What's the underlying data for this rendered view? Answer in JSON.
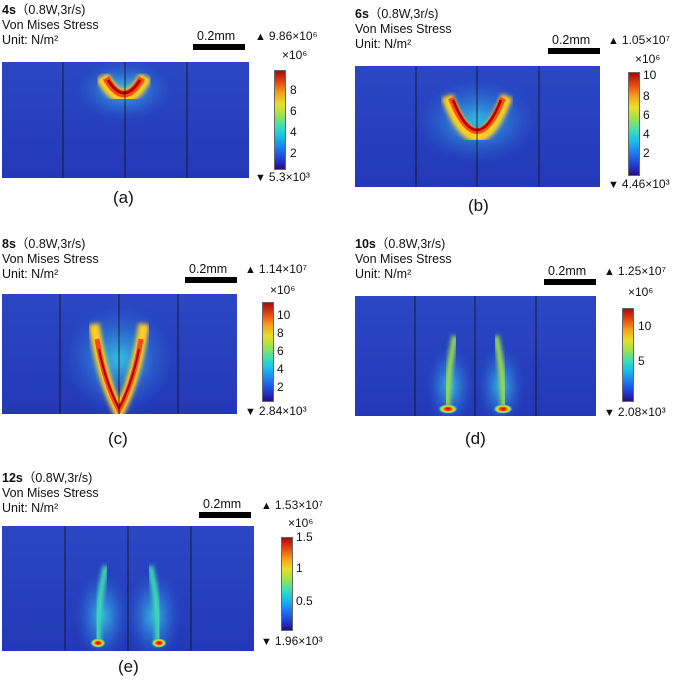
{
  "common": {
    "quantity": "Von Mises Stress",
    "unit": "Unit:  N/m²",
    "scalebar": "0.2mm",
    "multiplier": "×10⁶"
  },
  "panels": [
    {
      "time": "4s",
      "params": "（0.8W,3r/s)",
      "max": "9.86×10⁶",
      "min": "5.3×10³",
      "ticks": [
        "8",
        "6",
        "4",
        "2"
      ],
      "caption": "(a)"
    },
    {
      "time": "6s",
      "params": "（0.8W,3r/s)",
      "max": "1.05×10⁷",
      "min": "4.46×10³",
      "ticks": [
        "10",
        "8",
        "6",
        "4",
        "2"
      ],
      "caption": "(b)"
    },
    {
      "time": "8s",
      "params": "（0.8W,3r/s)",
      "max": "1.14×10⁷",
      "min": "2.84×10³",
      "ticks": [
        "10",
        "8",
        "6",
        "4",
        "2"
      ],
      "caption": "(c)"
    },
    {
      "time": "10s",
      "params": "（0.8W,3r/s)",
      "max": "1.25×10⁷",
      "min": "2.08×10³",
      "ticks": [
        "10",
        "5"
      ],
      "caption": "(d)"
    },
    {
      "time": "12s",
      "params": "（0.8W,3r/s)",
      "max": "1.53×10⁷",
      "min": "1.96×10³",
      "ticks": [
        "1.5",
        "1",
        "0.5"
      ],
      "caption": "(e)"
    }
  ]
}
